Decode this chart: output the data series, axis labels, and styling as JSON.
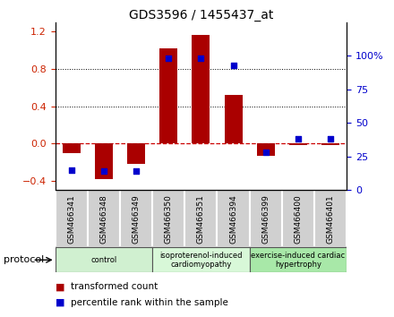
{
  "title": "GDS3596 / 1455437_at",
  "samples": [
    "GSM466341",
    "GSM466348",
    "GSM466349",
    "GSM466350",
    "GSM466351",
    "GSM466394",
    "GSM466399",
    "GSM466400",
    "GSM466401"
  ],
  "red_values": [
    -0.1,
    -0.38,
    -0.22,
    1.02,
    1.16,
    0.52,
    -0.13,
    -0.02,
    -0.02
  ],
  "blue_values": [
    15,
    14,
    14,
    98,
    98,
    93,
    28,
    38,
    38
  ],
  "groups": [
    {
      "label": "control",
      "start": 0,
      "end": 3,
      "color": "#d0f0d0"
    },
    {
      "label": "isoproterenol-induced\ncardiomyopathy",
      "start": 3,
      "end": 6,
      "color": "#d8f8d8"
    },
    {
      "label": "exercise-induced cardiac\nhypertrophy",
      "start": 6,
      "end": 9,
      "color": "#a8e8a8"
    }
  ],
  "protocol_label": "protocol",
  "left_ylim": [
    -0.5,
    1.3
  ],
  "right_ylim": [
    0,
    125
  ],
  "left_yticks": [
    -0.4,
    0.0,
    0.4,
    0.8,
    1.2
  ],
  "right_yticks": [
    0,
    25,
    50,
    75,
    100
  ],
  "grid_values": [
    0.4,
    0.8
  ],
  "bar_color": "#aa0000",
  "dot_color": "#0000cc",
  "zero_line_color": "#cc0000",
  "background_color": "#ffffff",
  "label_box_color": "#d0d0d0",
  "figsize": [
    4.4,
    3.54
  ],
  "dpi": 100
}
